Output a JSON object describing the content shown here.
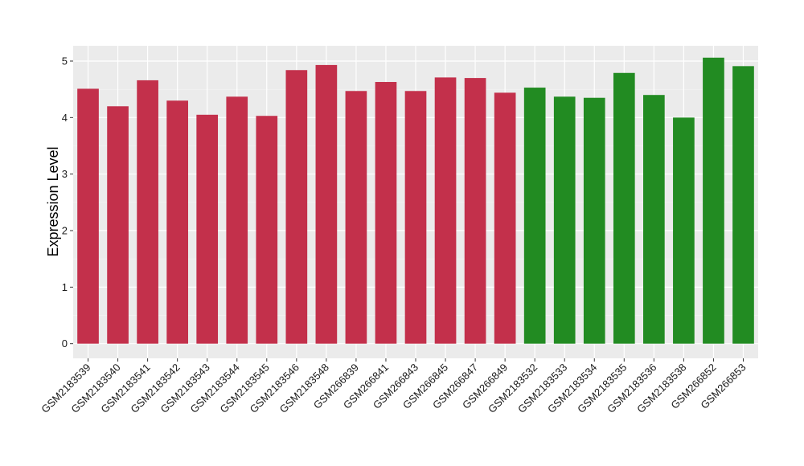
{
  "chart_data": {
    "type": "bar",
    "ylabel": "Expression Level",
    "xlabel": "",
    "ylim": [
      -0.26,
      5.27
    ],
    "yticks": [
      0,
      1,
      2,
      3,
      4,
      5
    ],
    "grid": true,
    "background": "#ebebeb",
    "categories": [
      "GSM2183539",
      "GSM2183540",
      "GSM2183541",
      "GSM2183542",
      "GSM2183543",
      "GSM2183544",
      "GSM2183545",
      "GSM2183546",
      "GSM2183548",
      "GSM266839",
      "GSM266841",
      "GSM266843",
      "GSM266845",
      "GSM266847",
      "GSM266849",
      "GSM2183532",
      "GSM2183533",
      "GSM2183534",
      "GSM2183535",
      "GSM2183536",
      "GSM2183538",
      "GSM266852",
      "GSM266853"
    ],
    "values": [
      4.51,
      4.2,
      4.66,
      4.3,
      4.05,
      4.37,
      4.03,
      4.84,
      4.93,
      4.47,
      4.63,
      4.47,
      4.71,
      4.7,
      4.44,
      4.53,
      4.37,
      4.35,
      4.79,
      4.4,
      4.0,
      5.06,
      4.91
    ],
    "groups": [
      "red",
      "red",
      "red",
      "red",
      "red",
      "red",
      "red",
      "red",
      "red",
      "red",
      "red",
      "red",
      "red",
      "red",
      "red",
      "green",
      "green",
      "green",
      "green",
      "green",
      "green",
      "green",
      "green"
    ],
    "colors": {
      "red": "#c3304b",
      "green": "#228b22"
    }
  }
}
